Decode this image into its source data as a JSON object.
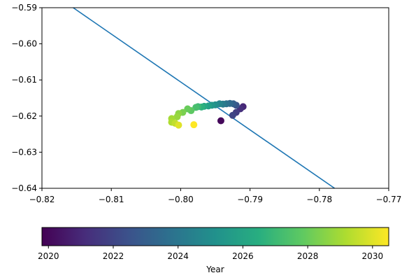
{
  "chart_data": {
    "type": "scatter",
    "title": "",
    "xlabel": "",
    "ylabel": "",
    "xlim": [
      -0.82,
      -0.77
    ],
    "ylim": [
      -0.64,
      -0.59
    ],
    "xticks": [
      -0.82,
      -0.81,
      -0.8,
      -0.79,
      -0.78,
      -0.77
    ],
    "xtick_labels": [
      "−0.82",
      "−0.81",
      "−0.80",
      "−0.79",
      "−0.78",
      "−0.77"
    ],
    "yticks": [
      -0.64,
      -0.63,
      -0.62,
      -0.61,
      -0.6,
      -0.59
    ],
    "ytick_labels": [
      "−0.64",
      "−0.63",
      "−0.62",
      "−0.61",
      "−0.60",
      "−0.59"
    ],
    "grid": false,
    "line": {
      "color": "#1f77b4",
      "x": [
        -0.8155,
        -0.7778
      ],
      "y": [
        -0.59,
        -0.64
      ]
    },
    "colormap": "viridis",
    "points": [
      {
        "x": -0.7942,
        "y": -0.6213,
        "c": 2020.0
      },
      {
        "x": -0.791,
        "y": -0.6174,
        "c": 2021.0
      },
      {
        "x": -0.7914,
        "y": -0.618,
        "c": 2021.3
      },
      {
        "x": -0.792,
        "y": -0.619,
        "c": 2021.7
      },
      {
        "x": -0.7925,
        "y": -0.6198,
        "c": 2022.0
      },
      {
        "x": -0.792,
        "y": -0.617,
        "c": 2022.5
      },
      {
        "x": -0.7924,
        "y": -0.6166,
        "c": 2023.0
      },
      {
        "x": -0.7929,
        "y": -0.6165,
        "c": 2023.4
      },
      {
        "x": -0.7934,
        "y": -0.6166,
        "c": 2023.8
      },
      {
        "x": -0.7939,
        "y": -0.6167,
        "c": 2024.2
      },
      {
        "x": -0.7944,
        "y": -0.6166,
        "c": 2024.6
      },
      {
        "x": -0.795,
        "y": -0.6169,
        "c": 2025.0
      },
      {
        "x": -0.7955,
        "y": -0.617,
        "c": 2025.4
      },
      {
        "x": -0.796,
        "y": -0.6172,
        "c": 2025.8
      },
      {
        "x": -0.7966,
        "y": -0.6173,
        "c": 2026.2
      },
      {
        "x": -0.797,
        "y": -0.6175,
        "c": 2026.6
      },
      {
        "x": -0.7975,
        "y": -0.6174,
        "c": 2027.0
      },
      {
        "x": -0.7978,
        "y": -0.6176,
        "c": 2027.3
      },
      {
        "x": -0.7985,
        "y": -0.6185,
        "c": 2027.8
      },
      {
        "x": -0.799,
        "y": -0.618,
        "c": 2028.0
      },
      {
        "x": -0.7997,
        "y": -0.619,
        "c": 2028.3
      },
      {
        "x": -0.8003,
        "y": -0.6193,
        "c": 2028.6
      },
      {
        "x": -0.8005,
        "y": -0.6202,
        "c": 2028.8
      },
      {
        "x": -0.8013,
        "y": -0.6207,
        "c": 2029.0
      },
      {
        "x": -0.8013,
        "y": -0.6217,
        "c": 2029.2
      },
      {
        "x": -0.8008,
        "y": -0.622,
        "c": 2029.5
      },
      {
        "x": -0.8003,
        "y": -0.6225,
        "c": 2030.0
      },
      {
        "x": -0.7981,
        "y": -0.6224,
        "c": 2030.5
      }
    ],
    "colorbar": {
      "label": "Year",
      "range": [
        2019.8,
        2030.5
      ],
      "ticks": [
        2020,
        2022,
        2024,
        2026,
        2028,
        2030
      ],
      "tick_labels": [
        "2020",
        "2022",
        "2024",
        "2026",
        "2028",
        "2030"
      ]
    }
  }
}
